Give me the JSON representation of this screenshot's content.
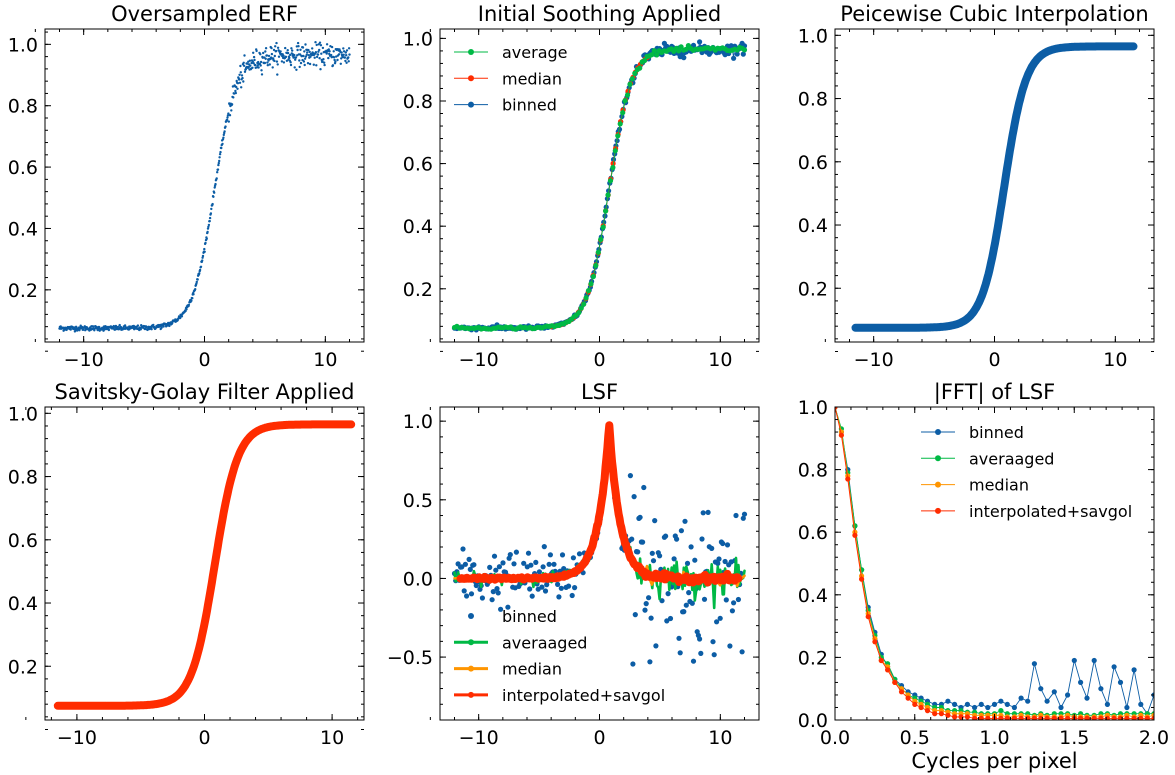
{
  "colors": {
    "blue": "#0C5DA5",
    "green": "#00B945",
    "orange": "#FF9500",
    "red": "#FF2C00"
  },
  "chart_data": [
    {
      "type": "scatter",
      "title": "Oversampled ERF",
      "xlabel": "",
      "ylabel": "",
      "xlim": [
        -13.2,
        13.2
      ],
      "ylim": [
        0.03,
        1.05
      ],
      "xticks": [
        -10,
        0,
        10
      ],
      "yticks": [
        0.2,
        0.4,
        0.6,
        0.8,
        1.0
      ],
      "xtick_labels": [
        "−10",
        "0",
        "10"
      ],
      "ytick_labels": [
        "0.2",
        "0.4",
        "0.6",
        "0.8",
        "1.0"
      ],
      "legend": null,
      "series": [
        {
          "label": "",
          "marker": "dot",
          "line": false,
          "color": "#0C5DA5",
          "curve": "erf",
          "x_range": [
            -12,
            12
          ],
          "count": 700,
          "noise": [
            0.004,
            0.018
          ],
          "base": 0.075,
          "top": 0.965
        }
      ]
    },
    {
      "type": "line",
      "title": "Initial Soothing Applied",
      "xlabel": "",
      "ylabel": "",
      "xlim": [
        -13.2,
        13.2
      ],
      "ylim": [
        0.03,
        1.03
      ],
      "xticks": [
        -10,
        0,
        10
      ],
      "yticks": [
        0.2,
        0.4,
        0.6,
        0.8,
        1.0
      ],
      "xtick_labels": [
        "−10",
        "0",
        "10"
      ],
      "ytick_labels": [
        "0.2",
        "0.4",
        "0.6",
        "0.8",
        "1.0"
      ],
      "legend": {
        "position": "top-left",
        "entries": [
          {
            "label": "average",
            "color": "#00B945"
          },
          {
            "label": "median",
            "color": "#FF2C00"
          },
          {
            "label": "binned",
            "color": "#0C5DA5"
          }
        ]
      },
      "series": [
        {
          "label": "binned",
          "marker": "circle",
          "line": true,
          "color": "#0C5DA5",
          "curve": "erf",
          "x_range": [
            -12,
            12
          ],
          "count": 240,
          "noise": [
            0.003,
            0.01
          ],
          "base": 0.075,
          "top": 0.965
        },
        {
          "label": "median",
          "marker": "circle",
          "line": true,
          "color": "#FF2C00",
          "curve": "erf",
          "x_range": [
            -4,
            4
          ],
          "count": 40,
          "noise": [
            0.0,
            0.0
          ],
          "base": 0.075,
          "top": 0.965
        },
        {
          "label": "average",
          "marker": "circle",
          "line": true,
          "color": "#00B945",
          "curve": "erf",
          "x_range": [
            -12,
            12
          ],
          "count": 120,
          "noise": [
            0.002,
            0.004
          ],
          "base": 0.075,
          "top": 0.965
        }
      ]
    },
    {
      "type": "line",
      "title": "Peicewise Cubic Interpolation",
      "xlabel": "",
      "ylabel": "",
      "xlim": [
        -13.2,
        13.2
      ],
      "ylim": [
        0.03,
        1.02
      ],
      "xticks": [
        -10,
        0,
        10
      ],
      "yticks": [
        0.2,
        0.4,
        0.6,
        0.8,
        1.0
      ],
      "xtick_labels": [
        "−10",
        "0",
        "10"
      ],
      "ytick_labels": [
        "0.2",
        "0.4",
        "0.6",
        "0.8",
        "1.0"
      ],
      "legend": null,
      "series": [
        {
          "label": "",
          "marker": "thick",
          "line": true,
          "color": "#0C5DA5",
          "curve": "erf",
          "x_range": [
            -11.5,
            11.5
          ],
          "count": 300,
          "noise": [
            0.0,
            0.0
          ],
          "base": 0.075,
          "top": 0.965
        }
      ]
    },
    {
      "type": "line",
      "title": "Savitsky-Golay Filter Applied",
      "xlabel": "",
      "ylabel": "",
      "xlim": [
        -12.5,
        12.5
      ],
      "ylim": [
        0.03,
        1.02
      ],
      "xticks": [
        -10,
        0,
        10
      ],
      "yticks": [
        0.2,
        0.4,
        0.6,
        0.8,
        1.0
      ],
      "xtick_labels": [
        "−10",
        "0",
        "10"
      ],
      "ytick_labels": [
        "0.2",
        "0.4",
        "0.6",
        "0.8",
        "1.0"
      ],
      "legend": null,
      "series": [
        {
          "label": "",
          "marker": "thick",
          "line": true,
          "color": "#FF2C00",
          "curve": "erf",
          "x_range": [
            -11.5,
            11.5
          ],
          "count": 300,
          "noise": [
            0.0,
            0.0
          ],
          "base": 0.075,
          "top": 0.965
        }
      ]
    },
    {
      "type": "line",
      "title": "LSF",
      "xlabel": "",
      "ylabel": "",
      "xlim": [
        -13.2,
        13.2
      ],
      "ylim": [
        -0.9,
        1.09
      ],
      "xticks": [
        -10,
        0,
        10
      ],
      "yticks": [
        -0.5,
        0.0,
        0.5,
        1.0
      ],
      "xtick_labels": [
        "−10",
        "0",
        "10"
      ],
      "ytick_labels": [
        "−0.5",
        "0.0",
        "0.5",
        "1.0"
      ],
      "legend": {
        "position": "bottom-center",
        "entries": [
          {
            "label": "binned",
            "color": "#0C5DA5"
          },
          {
            "label": "averaaged",
            "color": "#00B945"
          },
          {
            "label": "median",
            "color": "#FF9500"
          },
          {
            "label": "interpolated+savgol",
            "color": "#FF2C00"
          }
        ]
      },
      "series": [
        {
          "label": "binned",
          "marker": "circle",
          "line": false,
          "color": "#0C5DA5",
          "curve": "lsf",
          "x_range": [
            -12,
            12
          ],
          "count": 240,
          "noise": [
            0.05,
            0.25
          ]
        },
        {
          "label": "averaaged",
          "marker": "none",
          "line": true,
          "color": "#00B945",
          "curve": "lsf",
          "x_range": [
            -12,
            12
          ],
          "count": 240,
          "noise": [
            0.015,
            0.05
          ]
        },
        {
          "label": "median",
          "marker": "none",
          "line": true,
          "color": "#FF9500",
          "curve": "lsf",
          "x_range": [
            -12,
            12
          ],
          "count": 120,
          "noise": [
            0.008,
            0.02
          ]
        },
        {
          "label": "interpolated+savgol",
          "marker": "thick",
          "line": true,
          "color": "#FF2C00",
          "curve": "lsf",
          "x_range": [
            -11.5,
            11.5
          ],
          "count": 300,
          "noise": [
            0.005,
            0.01
          ]
        }
      ]
    },
    {
      "type": "line",
      "title": "|FFT| of LSF",
      "xlabel": "Cycles per pixel",
      "ylabel": "",
      "xlim": [
        0.0,
        2.0
      ],
      "ylim": [
        0.0,
        1.0
      ],
      "xticks": [
        0.0,
        0.5,
        1.0,
        1.5,
        2.0
      ],
      "yticks": [
        0.0,
        0.2,
        0.4,
        0.6,
        0.8,
        1.0
      ],
      "xtick_labels": [
        "0.0",
        "0.5",
        "1.0",
        "1.5",
        "2.0"
      ],
      "ytick_labels": [
        "0.0",
        "0.2",
        "0.4",
        "0.6",
        "0.8",
        "1.0"
      ],
      "legend": {
        "position": "top-right",
        "entries": [
          {
            "label": "binned",
            "color": "#0C5DA5"
          },
          {
            "label": "averaaged",
            "color": "#00B945"
          },
          {
            "label": "median",
            "color": "#FF9500"
          },
          {
            "label": "interpolated+savgol",
            "color": "#FF2C00"
          }
        ]
      },
      "series": [
        {
          "label": "binned",
          "marker": "circle",
          "line": true,
          "color": "#0C5DA5",
          "x": [
            0.0,
            0.04,
            0.08,
            0.125,
            0.167,
            0.208,
            0.25,
            0.29,
            0.33,
            0.375,
            0.417,
            0.458,
            0.5,
            0.54,
            0.58,
            0.625,
            0.667,
            0.708,
            0.75,
            0.79,
            0.83,
            0.875,
            0.917,
            0.958,
            1.0,
            1.04,
            1.08,
            1.125,
            1.167,
            1.208,
            1.25,
            1.29,
            1.33,
            1.375,
            1.417,
            1.458,
            1.5,
            1.54,
            1.58,
            1.625,
            1.667,
            1.708,
            1.75,
            1.79,
            1.83,
            1.875,
            1.917,
            1.958,
            2.0
          ],
          "y": [
            1.0,
            0.92,
            0.8,
            0.62,
            0.48,
            0.36,
            0.28,
            0.21,
            0.17,
            0.13,
            0.11,
            0.09,
            0.08,
            0.07,
            0.06,
            0.05,
            0.05,
            0.06,
            0.05,
            0.04,
            0.05,
            0.04,
            0.05,
            0.04,
            0.05,
            0.06,
            0.05,
            0.04,
            0.07,
            0.06,
            0.18,
            0.1,
            0.06,
            0.09,
            0.04,
            0.08,
            0.19,
            0.12,
            0.07,
            0.19,
            0.1,
            0.05,
            0.17,
            0.12,
            0.04,
            0.16,
            0.05,
            0.02,
            0.08
          ]
        },
        {
          "label": "averaaged",
          "marker": "circle",
          "line": true,
          "color": "#00B945",
          "x": [
            0.0,
            0.04,
            0.08,
            0.125,
            0.167,
            0.208,
            0.25,
            0.29,
            0.33,
            0.375,
            0.417,
            0.458,
            0.5,
            0.54,
            0.58,
            0.625,
            0.667,
            0.708,
            0.75,
            0.79,
            0.83,
            0.875,
            0.917,
            0.958,
            1.0,
            1.04,
            1.08,
            1.125,
            1.167,
            1.208,
            1.25,
            1.29,
            1.33,
            1.375,
            1.417,
            1.458,
            1.5,
            1.54,
            1.58,
            1.625,
            1.667,
            1.708,
            1.75,
            1.79,
            1.83,
            1.875,
            1.917,
            1.958,
            2.0
          ],
          "y": [
            1.0,
            0.93,
            0.79,
            0.62,
            0.48,
            0.35,
            0.27,
            0.2,
            0.18,
            0.13,
            0.1,
            0.08,
            0.07,
            0.06,
            0.05,
            0.04,
            0.04,
            0.03,
            0.03,
            0.03,
            0.025,
            0.025,
            0.02,
            0.02,
            0.02,
            0.03,
            0.02,
            0.02,
            0.02,
            0.02,
            0.015,
            0.02,
            0.015,
            0.02,
            0.02,
            0.02,
            0.015,
            0.02,
            0.015,
            0.015,
            0.02,
            0.02,
            0.015,
            0.02,
            0.02,
            0.02,
            0.02,
            0.02,
            0.02
          ]
        },
        {
          "label": "median",
          "marker": "circle",
          "line": true,
          "color": "#FF9500",
          "x": [
            0.0,
            0.04,
            0.08,
            0.125,
            0.167,
            0.208,
            0.25,
            0.29,
            0.33,
            0.375,
            0.417,
            0.458,
            0.5,
            0.54,
            0.58,
            0.625,
            0.667,
            0.708,
            0.75,
            0.79,
            0.83,
            0.875,
            0.917,
            0.958,
            1.0,
            1.04,
            1.08,
            1.125,
            1.167,
            1.208,
            1.25,
            1.29,
            1.33,
            1.375,
            1.417,
            1.458,
            1.5,
            1.54,
            1.58,
            1.625,
            1.667,
            1.708,
            1.75,
            1.79,
            1.83,
            1.875,
            1.917,
            1.958,
            2.0
          ],
          "y": [
            1.0,
            0.92,
            0.78,
            0.6,
            0.46,
            0.34,
            0.26,
            0.19,
            0.17,
            0.12,
            0.1,
            0.08,
            0.06,
            0.05,
            0.04,
            0.03,
            0.03,
            0.025,
            0.02,
            0.02,
            0.02,
            0.015,
            0.015,
            0.015,
            0.015,
            0.015,
            0.01,
            0.01,
            0.015,
            0.01,
            0.01,
            0.015,
            0.01,
            0.01,
            0.01,
            0.015,
            0.01,
            0.01,
            0.01,
            0.01,
            0.01,
            0.015,
            0.01,
            0.01,
            0.015,
            0.01,
            0.015,
            0.01,
            0.015
          ]
        },
        {
          "label": "interpolated+savgol",
          "marker": "circle",
          "line": true,
          "color": "#FF2C00",
          "x": [
            0.0,
            0.04,
            0.08,
            0.125,
            0.167,
            0.208,
            0.25,
            0.29,
            0.33,
            0.375,
            0.417,
            0.458,
            0.5,
            0.54,
            0.58,
            0.625,
            0.667,
            0.708,
            0.75,
            0.79,
            0.83,
            0.875,
            0.917,
            0.958,
            1.0,
            1.04,
            1.08,
            1.125,
            1.167,
            1.208,
            1.25,
            1.29,
            1.33,
            1.375,
            1.417,
            1.458,
            1.5,
            1.54,
            1.58,
            1.625,
            1.667,
            1.708,
            1.75,
            1.79,
            1.83,
            1.875,
            1.917,
            1.958,
            2.0
          ],
          "y": [
            1.0,
            0.91,
            0.77,
            0.59,
            0.45,
            0.33,
            0.25,
            0.19,
            0.16,
            0.12,
            0.09,
            0.07,
            0.05,
            0.04,
            0.03,
            0.02,
            0.02,
            0.015,
            0.01,
            0.01,
            0.01,
            0.005,
            0.005,
            0.005,
            0.005,
            0.005,
            0.005,
            0.005,
            0.005,
            0.005,
            0.005,
            0.005,
            0.005,
            0.005,
            0.005,
            0.005,
            0.005,
            0.005,
            0.005,
            0.005,
            0.005,
            0.005,
            0.005,
            0.005,
            0.005,
            0.005,
            0.005,
            0.005,
            0.005
          ]
        }
      ]
    }
  ]
}
